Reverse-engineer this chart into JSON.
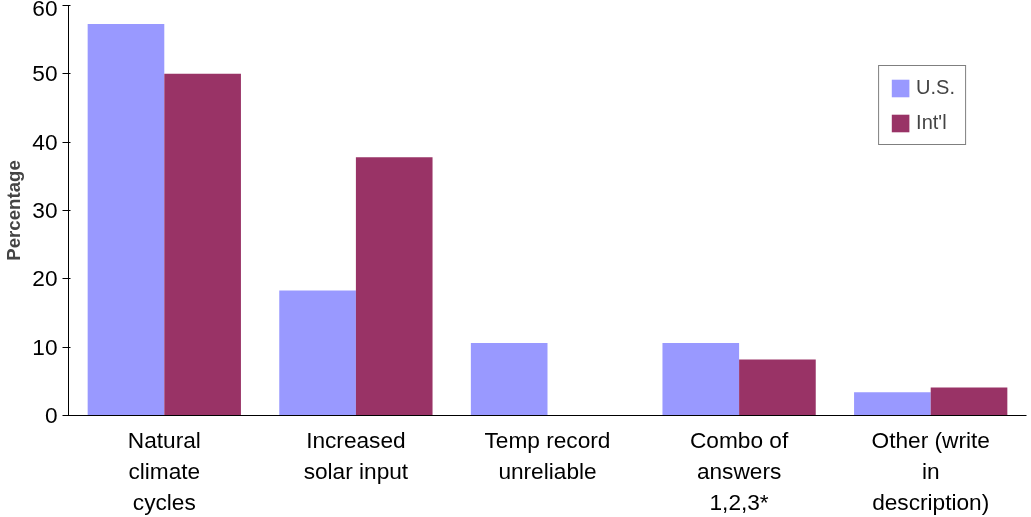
{
  "chart_data": {
    "type": "bar",
    "ylabel": "Percentage",
    "categories": [
      "Natural climate cycles",
      "Increased solar input",
      "Temp record unreliable",
      "Combo of answers 1,2,3*",
      "Other (write in description)"
    ],
    "series": [
      {
        "name": "U.S.",
        "color": "#9999ff",
        "values": [
          57.3,
          18.3,
          10.6,
          10.6,
          3.4
        ]
      },
      {
        "name": "Int'l",
        "color": "#993366",
        "values": [
          50.0,
          37.8,
          0,
          8.2,
          4.1
        ]
      }
    ],
    "ylim": [
      0,
      60
    ],
    "yticks": [
      0,
      10,
      20,
      30,
      40,
      50,
      60
    ],
    "grid": false,
    "legend": "top right"
  }
}
